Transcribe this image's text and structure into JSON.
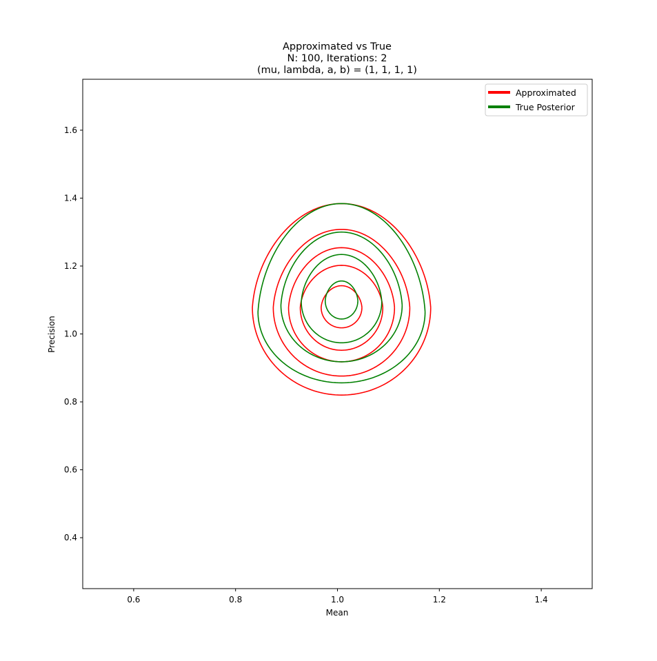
{
  "chart_data": {
    "type": "contour",
    "title_lines": [
      "Approximated vs True",
      "N: 100, Iterations: 2",
      "(mu, lambda, a, b) = (1, 1, 1, 1)"
    ],
    "xlabel": "Mean",
    "ylabel": "Precision",
    "xlim": [
      0.5,
      1.5
    ],
    "ylim": [
      0.25,
      1.75
    ],
    "xticks": [
      0.6,
      0.8,
      1.0,
      1.2,
      1.4
    ],
    "xtick_labels": [
      "0.6",
      "0.8",
      "1.0",
      "1.2",
      "1.4"
    ],
    "yticks": [
      0.4,
      0.6,
      0.8,
      1.0,
      1.2,
      1.4,
      1.6
    ],
    "ytick_labels": [
      "0.4",
      "0.6",
      "0.8",
      "1.0",
      "1.2",
      "1.4",
      "1.6"
    ],
    "grid": false,
    "legend_position": "top-right",
    "series": [
      {
        "name": "Approximated",
        "color": "#ff0000",
        "contours": [
          {
            "cx": 1.008,
            "cy_bottom": 0.82,
            "cy_top": 1.384,
            "cy_widest": 1.078,
            "half_width": 0.175
          },
          {
            "cx": 1.008,
            "cy_bottom": 0.876,
            "cy_top": 1.308,
            "cy_widest": 1.078,
            "half_width": 0.134
          },
          {
            "cx": 1.008,
            "cy_bottom": 0.918,
            "cy_top": 1.254,
            "cy_widest": 1.078,
            "half_width": 0.104
          },
          {
            "cx": 1.008,
            "cy_bottom": 0.952,
            "cy_top": 1.202,
            "cy_widest": 1.078,
            "half_width": 0.081
          },
          {
            "cx": 1.008,
            "cy_bottom": 1.018,
            "cy_top": 1.142,
            "cy_widest": 1.078,
            "half_width": 0.04
          }
        ]
      },
      {
        "name": "True Posterior",
        "color": "#008000",
        "contours": [
          {
            "cx": 1.008,
            "cy_bottom": 0.856,
            "cy_top": 1.384,
            "cy_widest": 1.065,
            "half_width": 0.164
          },
          {
            "cx": 1.008,
            "cy_bottom": 0.918,
            "cy_top": 1.3,
            "cy_widest": 1.085,
            "half_width": 0.119
          },
          {
            "cx": 1.008,
            "cy_bottom": 0.974,
            "cy_top": 1.234,
            "cy_widest": 1.095,
            "half_width": 0.079
          },
          {
            "cx": 1.008,
            "cy_bottom": 1.044,
            "cy_top": 1.156,
            "cy_widest": 1.098,
            "half_width": 0.032
          }
        ]
      }
    ]
  }
}
